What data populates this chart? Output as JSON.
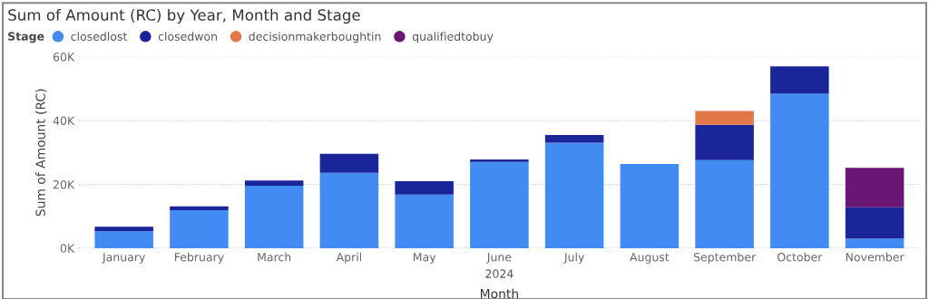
{
  "chart_data": {
    "type": "bar",
    "title": "Sum of Amount (RC) by Year, Month and Stage",
    "xlabel": "Month",
    "ylabel": "Sum of Amount (RC)",
    "legend_title": "Stage",
    "annotations": [
      "2024"
    ],
    "categories": [
      "January",
      "February",
      "March",
      "April",
      "May",
      "June",
      "July",
      "August",
      "September",
      "October",
      "November"
    ],
    "stacked": true,
    "legend": "top left",
    "grid": "y",
    "line_style": "dotted",
    "ylim": [
      0,
      60000
    ],
    "yticks": [
      {
        "value": 0,
        "label": "0K"
      },
      {
        "value": 20000,
        "label": "20K"
      },
      {
        "value": 40000,
        "label": "40K"
      },
      {
        "value": 60000,
        "label": "60K"
      }
    ],
    "series": [
      {
        "name": "closedlost",
        "color": "#418bf2",
        "values": [
          5300,
          11900,
          19600,
          23600,
          16800,
          27000,
          33100,
          26400,
          27600,
          48400,
          3000
        ]
      },
      {
        "name": "closedwon",
        "color": "#1a2599",
        "values": [
          1400,
          1200,
          1600,
          6000,
          4200,
          800,
          2400,
          null,
          11100,
          8600,
          9800
        ]
      },
      {
        "name": "decisionmakerboughtin",
        "color": "#e0784a",
        "values": [
          null,
          null,
          null,
          null,
          null,
          null,
          null,
          null,
          4300,
          null,
          null
        ]
      },
      {
        "name": "qualifiedtobuy",
        "color": "#6a1675",
        "values": [
          null,
          null,
          null,
          null,
          null,
          null,
          null,
          null,
          null,
          null,
          12400
        ]
      }
    ]
  }
}
